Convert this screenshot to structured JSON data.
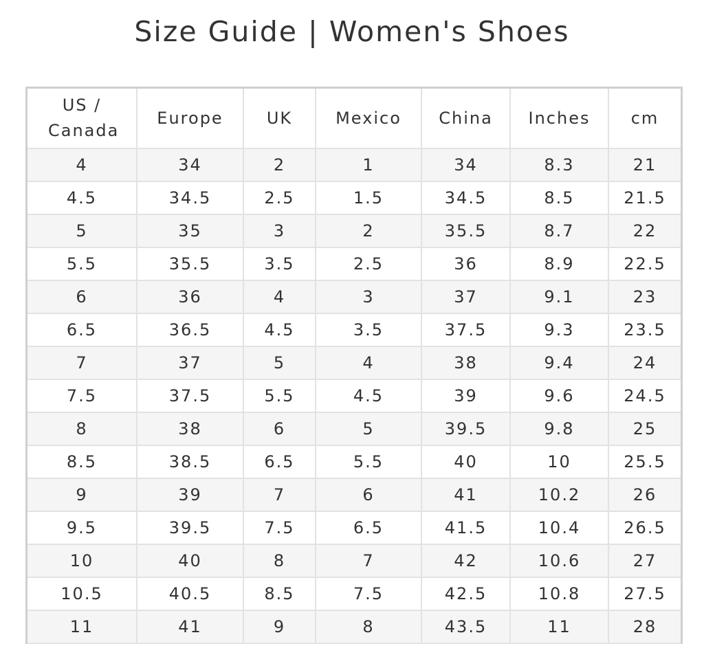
{
  "title": "Size Guide | Women's Shoes",
  "table": {
    "headers": [
      "US / Canada",
      "Europe",
      "UK",
      "Mexico",
      "China",
      "Inches",
      "cm"
    ],
    "rows": [
      [
        "4",
        "34",
        "2",
        "1",
        "34",
        "8.3",
        "21"
      ],
      [
        "4.5",
        "34.5",
        "2.5",
        "1.5",
        "34.5",
        "8.5",
        "21.5"
      ],
      [
        "5",
        "35",
        "3",
        "2",
        "35.5",
        "8.7",
        "22"
      ],
      [
        "5.5",
        "35.5",
        "3.5",
        "2.5",
        "36",
        "8.9",
        "22.5"
      ],
      [
        "6",
        "36",
        "4",
        "3",
        "37",
        "9.1",
        "23"
      ],
      [
        "6.5",
        "36.5",
        "4.5",
        "3.5",
        "37.5",
        "9.3",
        "23.5"
      ],
      [
        "7",
        "37",
        "5",
        "4",
        "38",
        "9.4",
        "24"
      ],
      [
        "7.5",
        "37.5",
        "5.5",
        "4.5",
        "39",
        "9.6",
        "24.5"
      ],
      [
        "8",
        "38",
        "6",
        "5",
        "39.5",
        "9.8",
        "25"
      ],
      [
        "8.5",
        "38.5",
        "6.5",
        "5.5",
        "40",
        "10",
        "25.5"
      ],
      [
        "9",
        "39",
        "7",
        "6",
        "41",
        "10.2",
        "26"
      ],
      [
        "9.5",
        "39.5",
        "7.5",
        "6.5",
        "41.5",
        "10.4",
        "26.5"
      ],
      [
        "10",
        "40",
        "8",
        "7",
        "42",
        "10.6",
        "27"
      ],
      [
        "10.5",
        "40.5",
        "8.5",
        "7.5",
        "42.5",
        "10.8",
        "27.5"
      ],
      [
        "11",
        "41",
        "9",
        "8",
        "43.5",
        "11",
        "28"
      ]
    ]
  }
}
